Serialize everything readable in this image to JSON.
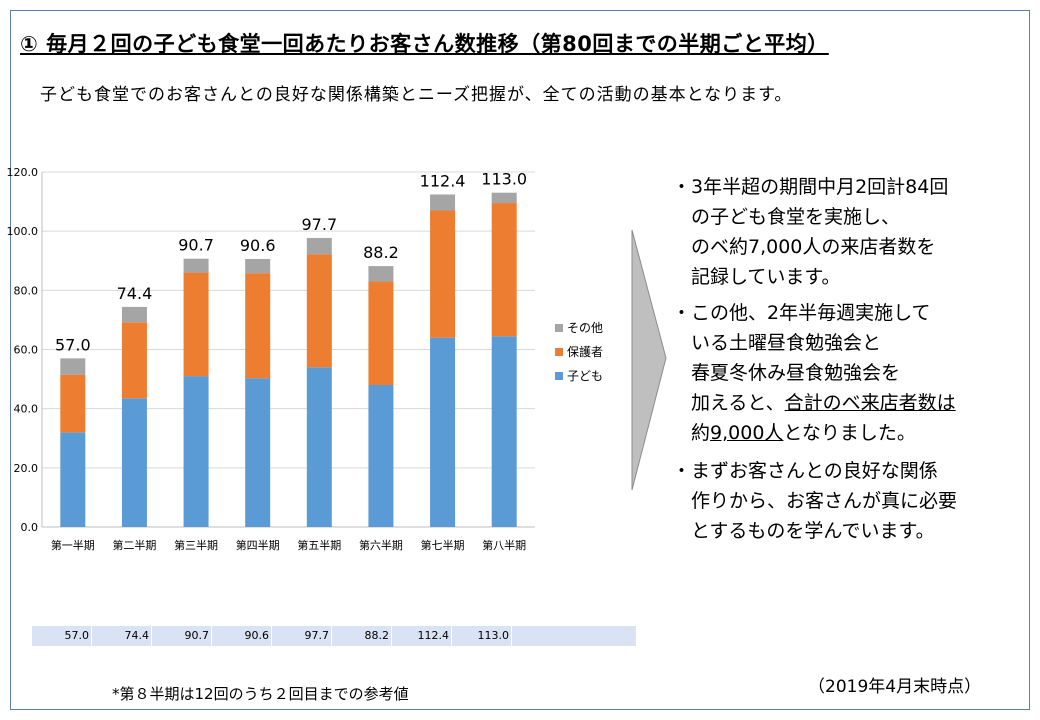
{
  "title": "① 毎月２回の子ども食堂一回あたりお客さん数推移（第80回までの半期ごと平均）",
  "subtitle": "子ども食堂でのお客さんとの良好な関係構築とニーズ把握が、全ての活動の基本となります。",
  "chart_data": {
    "type": "bar",
    "stacked": true,
    "categories": [
      "第一半期",
      "第二半期",
      "第三半期",
      "第四半期",
      "第五半期",
      "第六半期",
      "第七半期",
      "第八半期"
    ],
    "series": [
      {
        "name": "子ども",
        "color": "#5b9bd5",
        "values": [
          32.0,
          43.5,
          51.0,
          50.3,
          54.0,
          48.0,
          64.0,
          64.5
        ]
      },
      {
        "name": "保護者",
        "color": "#ed7d31",
        "values": [
          19.5,
          25.7,
          35.0,
          35.5,
          38.2,
          35.0,
          43.0,
          45.0
        ]
      },
      {
        "name": "その他",
        "color": "#a5a5a5",
        "values": [
          5.5,
          5.2,
          4.7,
          4.8,
          5.5,
          5.2,
          5.4,
          3.5
        ]
      }
    ],
    "totals": [
      "57.0",
      "74.4",
      "90.7",
      "90.6",
      "97.7",
      "88.2",
      "112.4",
      "113.0"
    ],
    "ylim": [
      0,
      120
    ],
    "yticks": [
      "0.0",
      "20.0",
      "40.0",
      "60.0",
      "80.0",
      "100.0",
      "120.0"
    ],
    "grid": true,
    "legend_position": "right"
  },
  "table": {
    "values": [
      "57.0",
      "74.4",
      "90.7",
      "90.6",
      "97.7",
      "88.2",
      "112.4",
      "113.0"
    ]
  },
  "bullets": [
    {
      "lines": [
        "・3年半超の期間中月2回計84回",
        "　の子ども食堂を実施し、",
        "　のベ約7,000人の来店者数を",
        "　記録しています。"
      ]
    },
    {
      "lines": [
        "・この他、2年半毎週実施して",
        "　いる土曜昼食勉強会と",
        "　春夏冬休み昼食勉強会を",
        "　加えると、"
      ],
      "line4_underlined": "合計のベ来店者数は",
      "line5_prefix": "　約",
      "line5_underlined": "9,000人",
      "line5_suffix": "となりました。"
    },
    {
      "lines": [
        "・まずお客さんとの良好な関係",
        "　作りから、お客さんが真に必要",
        "　とするものを学んでいます。"
      ]
    }
  ],
  "note": "*第８半期は12回のうち２回目までの参考値",
  "date": "（2019年4月末時点）",
  "colors": {
    "frame": "#5b7fa6",
    "arrow_fill": "#bfbfbf",
    "table_bg": "#dae3f3"
  }
}
